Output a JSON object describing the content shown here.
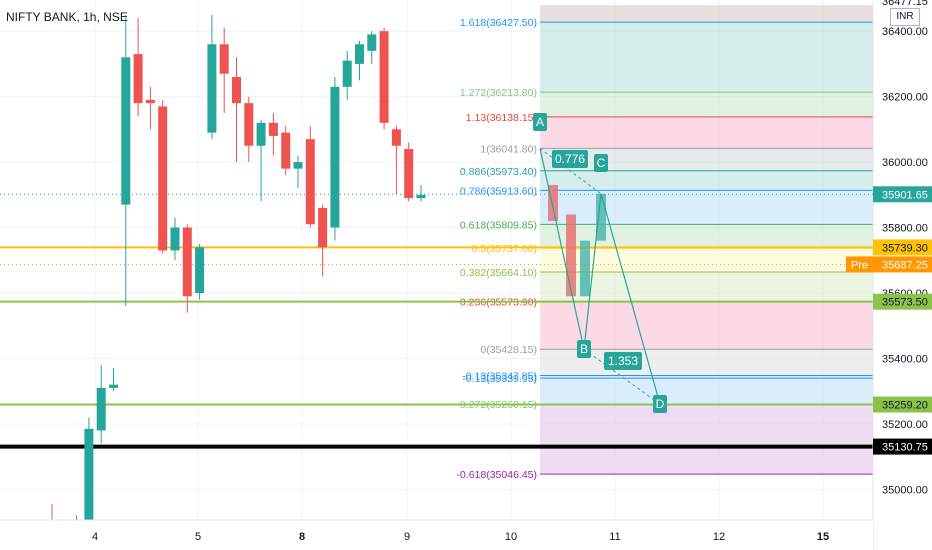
{
  "chart": {
    "symbol_title": "NIFTY BANK, 1h, NSE",
    "currency": "INR",
    "colors": {
      "up": "#26a69a",
      "down": "#ef5350",
      "last_price": "#26a69a",
      "pre_badge": "#ff9800",
      "hline_yellow": "#ffc107",
      "hline_green": "#8bc34a",
      "hline_black": "#000000",
      "pattern_down_fill": "#e57373",
      "pattern_up_fill": "#4db6ac",
      "pattern_line": "#26a69a"
    }
  },
  "chart_data": {
    "type": "candlestick",
    "y_range": [
      34830,
      36480
    ],
    "price_scale_labels": [
      "36400.00",
      "36200.00",
      "36000.00",
      "35800.00",
      "35600.00",
      "35400.00",
      "35200.00",
      "35000.00"
    ],
    "x_tick_labels": [
      "4",
      "5",
      "8",
      "9",
      "10",
      "11",
      "12",
      "15"
    ],
    "candles": [
      {
        "o": 34900,
        "h": 34955,
        "l": 34840,
        "c": 34865
      },
      {
        "o": 34870,
        "h": 34880,
        "l": 34840,
        "c": 34850
      },
      {
        "o": 34860,
        "h": 34920,
        "l": 34830,
        "c": 34900
      },
      {
        "o": 34895,
        "h": 35220,
        "l": 34870,
        "c": 35185
      },
      {
        "o": 35180,
        "h": 35380,
        "l": 35140,
        "c": 35310
      },
      {
        "o": 35310,
        "h": 35370,
        "l": 35300,
        "c": 35320
      },
      {
        "o": 35870,
        "h": 36450,
        "l": 35560,
        "c": 36320
      },
      {
        "o": 36330,
        "h": 36440,
        "l": 36140,
        "c": 36180
      },
      {
        "o": 36190,
        "h": 36230,
        "l": 36100,
        "c": 36180
      },
      {
        "o": 36170,
        "h": 36190,
        "l": 35720,
        "c": 35730
      },
      {
        "o": 35730,
        "h": 35830,
        "l": 35700,
        "c": 35800
      },
      {
        "o": 35800,
        "h": 35810,
        "l": 35540,
        "c": 35590
      },
      {
        "o": 35600,
        "h": 35750,
        "l": 35580,
        "c": 35740
      },
      {
        "o": 36090,
        "h": 36450,
        "l": 36070,
        "c": 36360
      },
      {
        "o": 36360,
        "h": 36410,
        "l": 36150,
        "c": 36270
      },
      {
        "o": 36260,
        "h": 36320,
        "l": 36000,
        "c": 36180
      },
      {
        "o": 36180,
        "h": 36200,
        "l": 36000,
        "c": 36050
      },
      {
        "o": 36050,
        "h": 36130,
        "l": 35880,
        "c": 36120
      },
      {
        "o": 36120,
        "h": 36150,
        "l": 36020,
        "c": 36080
      },
      {
        "o": 36090,
        "h": 36110,
        "l": 35960,
        "c": 35980
      },
      {
        "o": 35980,
        "h": 36020,
        "l": 35920,
        "c": 36000
      },
      {
        "o": 36070,
        "h": 36110,
        "l": 35800,
        "c": 35810
      },
      {
        "o": 35860,
        "h": 35870,
        "l": 35650,
        "c": 35740
      },
      {
        "o": 35800,
        "h": 36260,
        "l": 35760,
        "c": 36230
      },
      {
        "o": 36230,
        "h": 36340,
        "l": 36190,
        "c": 36310
      },
      {
        "o": 36300,
        "h": 36370,
        "l": 36250,
        "c": 36360
      },
      {
        "o": 36340,
        "h": 36400,
        "l": 36300,
        "c": 36390
      },
      {
        "o": 36400,
        "h": 36410,
        "l": 36100,
        "c": 36120
      },
      {
        "o": 36100,
        "h": 36110,
        "l": 35900,
        "c": 36050
      },
      {
        "o": 36040,
        "h": 36060,
        "l": 35880,
        "c": 35890
      },
      {
        "o": 35890,
        "h": 35930,
        "l": 35880,
        "c": 35900
      }
    ],
    "fib_levels": [
      {
        "label": "1.618(36427.50)",
        "price": 36427.5,
        "color": "#2196f3"
      },
      {
        "label": "1.272(36213.80)",
        "price": 36213.8,
        "color": "#81c784"
      },
      {
        "label": "1.13(36138.15)",
        "price": 36138.15,
        "color": "#f44336"
      },
      {
        "label": "1(36041.80)",
        "price": 36041.8,
        "color": "#9e9e9e"
      },
      {
        "label": "0.886(35973.40)",
        "price": 35973.4,
        "color": "#26a69a"
      },
      {
        "label": "0.786(35913.60)",
        "price": 35913.6,
        "color": "#2196f3"
      },
      {
        "label": "0.618(35809.85)",
        "price": 35809.85,
        "color": "#4caf50"
      },
      {
        "label": "0.5(35737.00)",
        "price": 35737.0,
        "color": "#ffc107"
      },
      {
        "label": "0.382(35664.10)",
        "price": 35664.1,
        "color": "#8bc34a"
      },
      {
        "label": "0.236(35573.90)",
        "price": 35573.9,
        "color": "#f44336"
      },
      {
        "label": "0(35428.15)",
        "price": 35428.15,
        "color": "#9e9e9e"
      },
      {
        "label": "-0.13(35347.85)",
        "price": 35347.85,
        "color": "#2196f3"
      },
      {
        "label": "-0.13(35339.95)",
        "price": 35339.95,
        "color": "#2196f3"
      },
      {
        "label": "-0.272(35260.15)",
        "price": 35260.15,
        "color": "#81c784"
      },
      {
        "label": "-0.618(35046.45)",
        "price": 35046.45,
        "color": "#9c27b0"
      }
    ],
    "horizontal_lines": [
      {
        "price": 35739.3,
        "label": "35739.30",
        "style": "yellow"
      },
      {
        "price": 35573.5,
        "label": "35573.50",
        "style": "green"
      },
      {
        "price": 35259.2,
        "label": "35259.20",
        "style": "green"
      },
      {
        "price": 35130.75,
        "label": "35130.75",
        "style": "black"
      }
    ],
    "price_badges": [
      {
        "label": "35901.65",
        "price": 35901.65,
        "kind": "last"
      },
      {
        "label": "35687.25",
        "price": 35687.25,
        "kind": "pre",
        "prefix": "Pre"
      },
      {
        "label": "36477.15",
        "price": 36470,
        "kind": "top"
      }
    ],
    "pattern_points": [
      {
        "name": "A",
        "price": 36041.8
      },
      {
        "name": "B",
        "price": 35428.15
      },
      {
        "name": "C",
        "price": 35903.0
      },
      {
        "name": "D",
        "price": 35260.15
      }
    ],
    "pattern_ratios": [
      "0.776",
      "1.353"
    ]
  }
}
